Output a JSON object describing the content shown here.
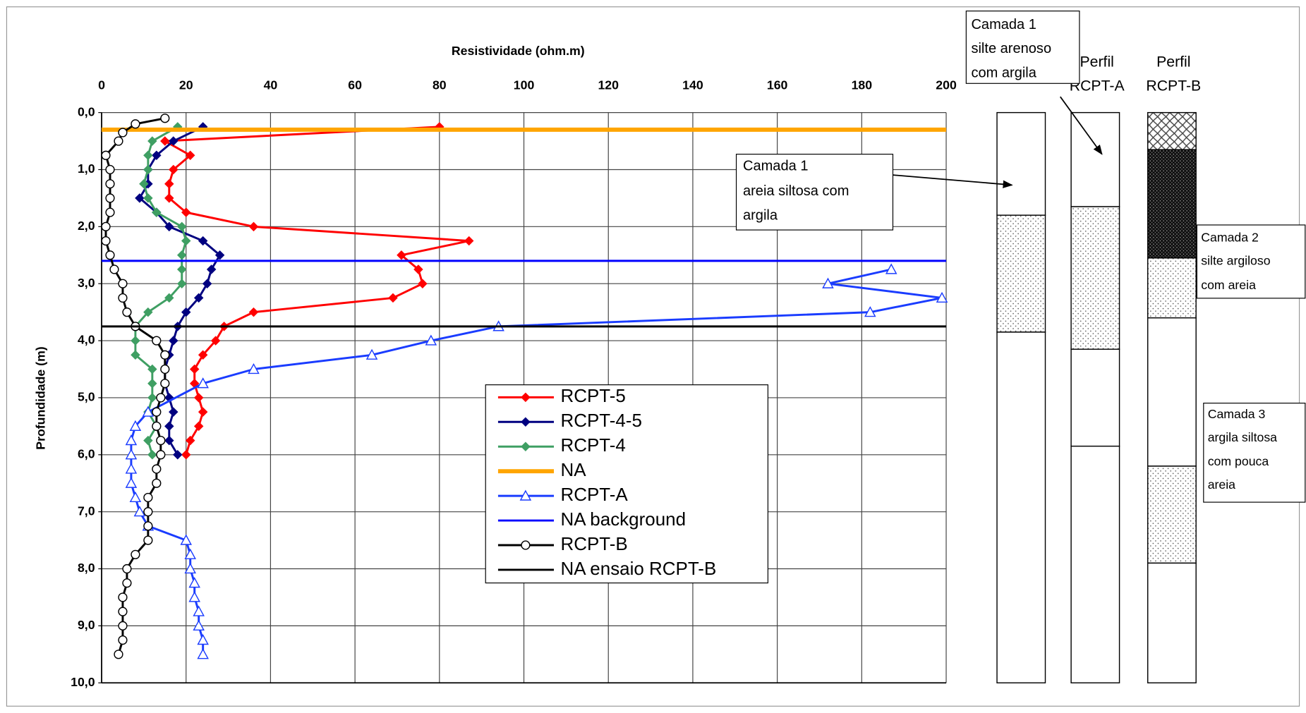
{
  "chart_data": {
    "type": "line",
    "xlabel": "Resistividade (ohm.m)",
    "ylabel": "Profundidade (m)",
    "xlim": [
      0,
      200
    ],
    "xticks": [
      0,
      20,
      40,
      60,
      80,
      100,
      120,
      140,
      160,
      180,
      200
    ],
    "ylim": [
      0,
      10
    ],
    "yreversed": true,
    "yticks": [
      {
        "value": 0,
        "label": "0,0"
      },
      {
        "value": 1,
        "label": "1,0"
      },
      {
        "value": 2,
        "label": "2,0"
      },
      {
        "value": 3,
        "label": "3,0"
      },
      {
        "value": 4,
        "label": "4,0"
      },
      {
        "value": 5,
        "label": "5,0"
      },
      {
        "value": 6,
        "label": "6,0"
      },
      {
        "value": 7,
        "label": "7,0"
      },
      {
        "value": 8,
        "label": "8,0"
      },
      {
        "value": 9,
        "label": "9,0"
      },
      {
        "value": 10,
        "label": "10,0"
      }
    ],
    "grid": true,
    "series": [
      {
        "name": "RCPT-5",
        "color": "#ff0000",
        "marker": "diamond",
        "x": [
          80,
          15,
          21,
          17,
          16,
          16,
          20,
          36,
          87,
          71,
          75,
          76,
          69,
          36,
          29,
          27,
          24,
          22,
          22,
          23,
          24,
          23,
          21,
          20
        ],
        "y": [
          0.25,
          0.5,
          0.75,
          1.0,
          1.25,
          1.5,
          1.75,
          2.0,
          2.25,
          2.5,
          2.75,
          3.0,
          3.25,
          3.5,
          3.75,
          4.0,
          4.25,
          4.5,
          4.75,
          5.0,
          5.25,
          5.5,
          5.75,
          6.0
        ]
      },
      {
        "name": "RCPT-4-5",
        "color": "#000080",
        "marker": "diamond",
        "x": [
          24,
          17,
          13,
          11,
          11,
          9,
          13,
          16,
          24,
          28,
          26,
          25,
          23,
          20,
          18,
          17,
          16,
          15,
          15,
          16,
          17,
          16,
          16,
          18
        ],
        "y": [
          0.25,
          0.5,
          0.75,
          1.0,
          1.25,
          1.5,
          1.75,
          2.0,
          2.25,
          2.5,
          2.75,
          3.0,
          3.25,
          3.5,
          3.75,
          4.0,
          4.25,
          4.5,
          4.75,
          5.0,
          5.25,
          5.5,
          5.75,
          6.0
        ]
      },
      {
        "name": "RCPT-4",
        "color": "#3f9f63",
        "marker": "diamond",
        "x": [
          18,
          12,
          11,
          11,
          10,
          11,
          13,
          19,
          20,
          19,
          19,
          19,
          16,
          11,
          8,
          8,
          8,
          12,
          12,
          12,
          11,
          13,
          11,
          12
        ],
        "y": [
          0.25,
          0.5,
          0.75,
          1.0,
          1.25,
          1.5,
          1.75,
          2.0,
          2.25,
          2.5,
          2.75,
          3.0,
          3.25,
          3.5,
          3.75,
          4.0,
          4.25,
          4.5,
          4.75,
          5.0,
          5.25,
          5.5,
          5.75,
          6.0
        ]
      },
      {
        "name": "NA",
        "color": "#ffa500",
        "marker": "none",
        "x": [
          0,
          200
        ],
        "y": [
          0.3,
          0.3
        ]
      },
      {
        "name": "RCPT-A",
        "color": "#1a3cff",
        "marker": "triangle",
        "x": [
          187,
          172,
          199,
          182,
          94,
          78,
          64,
          36,
          24,
          11,
          8,
          7,
          7,
          7,
          7,
          8,
          9,
          11,
          20,
          21,
          21,
          22,
          22,
          23,
          23,
          24,
          24
        ],
        "y": [
          2.75,
          3.0,
          3.25,
          3.5,
          3.75,
          4.0,
          4.25,
          4.5,
          4.75,
          5.25,
          5.5,
          5.75,
          6.0,
          6.25,
          6.5,
          6.75,
          7.0,
          7.25,
          7.5,
          7.75,
          8.0,
          8.25,
          8.5,
          8.75,
          9.0,
          9.25,
          9.5
        ]
      },
      {
        "name": "NA background",
        "color": "#0000ff",
        "marker": "none",
        "x": [
          0,
          200
        ],
        "y": [
          2.6,
          2.6
        ]
      },
      {
        "name": "RCPT-B",
        "color": "#000000",
        "marker": "circle",
        "x": [
          15,
          8,
          5,
          4,
          1,
          2,
          2,
          2,
          2,
          1,
          1,
          2,
          3,
          5,
          5,
          6,
          8,
          13,
          15,
          15,
          15,
          14,
          13,
          13,
          14,
          14,
          13,
          13,
          11,
          11,
          11,
          11,
          8,
          6,
          6,
          5,
          5,
          5,
          5,
          4
        ],
        "y": [
          0.1,
          0.2,
          0.35,
          0.5,
          0.75,
          1.0,
          1.25,
          1.5,
          1.75,
          2.0,
          2.25,
          2.5,
          2.75,
          3.0,
          3.25,
          3.5,
          3.75,
          4.0,
          4.25,
          4.5,
          4.75,
          5.0,
          5.25,
          5.5,
          5.75,
          6.0,
          6.25,
          6.5,
          6.75,
          7.0,
          7.25,
          7.5,
          7.75,
          8.0,
          8.25,
          8.5,
          8.75,
          9.0,
          9.25,
          9.5
        ]
      },
      {
        "name": "NA ensaio RCPT-B",
        "color": "#000000",
        "marker": "none",
        "x": [
          0,
          200
        ],
        "y": [
          3.75,
          3.75
        ]
      }
    ],
    "profiles": [
      {
        "layers": [
          {
            "top": 0,
            "bottom": 1.8,
            "pattern": "plain"
          },
          {
            "top": 1.8,
            "bottom": 3.85,
            "pattern": "dots"
          },
          {
            "top": 3.85,
            "bottom": 10,
            "pattern": "plain"
          }
        ]
      },
      {
        "title": [
          "Perfil",
          "RCPT-A"
        ],
        "layers": [
          {
            "top": 0,
            "bottom": 1.65,
            "pattern": "plain"
          },
          {
            "top": 1.65,
            "bottom": 4.15,
            "pattern": "dots"
          },
          {
            "top": 4.15,
            "bottom": 5.85,
            "pattern": "plain"
          },
          {
            "top": 5.85,
            "bottom": 10,
            "pattern": "plain"
          }
        ]
      },
      {
        "title": [
          "Perfil",
          "RCPT-B"
        ],
        "layers": [
          {
            "top": 0,
            "bottom": 0.65,
            "pattern": "hatch"
          },
          {
            "top": 0.65,
            "bottom": 2.55,
            "pattern": "dense"
          },
          {
            "top": 2.55,
            "bottom": 3.6,
            "pattern": "dots"
          },
          {
            "top": 3.6,
            "bottom": 6.2,
            "pattern": "plain"
          },
          {
            "top": 6.2,
            "bottom": 7.9,
            "pattern": "dots"
          },
          {
            "top": 7.9,
            "bottom": 10,
            "pattern": "plain"
          }
        ]
      }
    ],
    "annotations": [
      {
        "lines": [
          "Camada 1",
          "silte arenoso",
          "com argila"
        ]
      },
      {
        "lines": [
          "Camada 1",
          "areia siltosa com",
          "argila"
        ]
      },
      {
        "lines": [
          "Camada 2",
          "silte argiloso",
          "com areia"
        ]
      },
      {
        "lines": [
          "Camada 3",
          "argila siltosa",
          "com pouca",
          "areia"
        ]
      }
    ]
  }
}
